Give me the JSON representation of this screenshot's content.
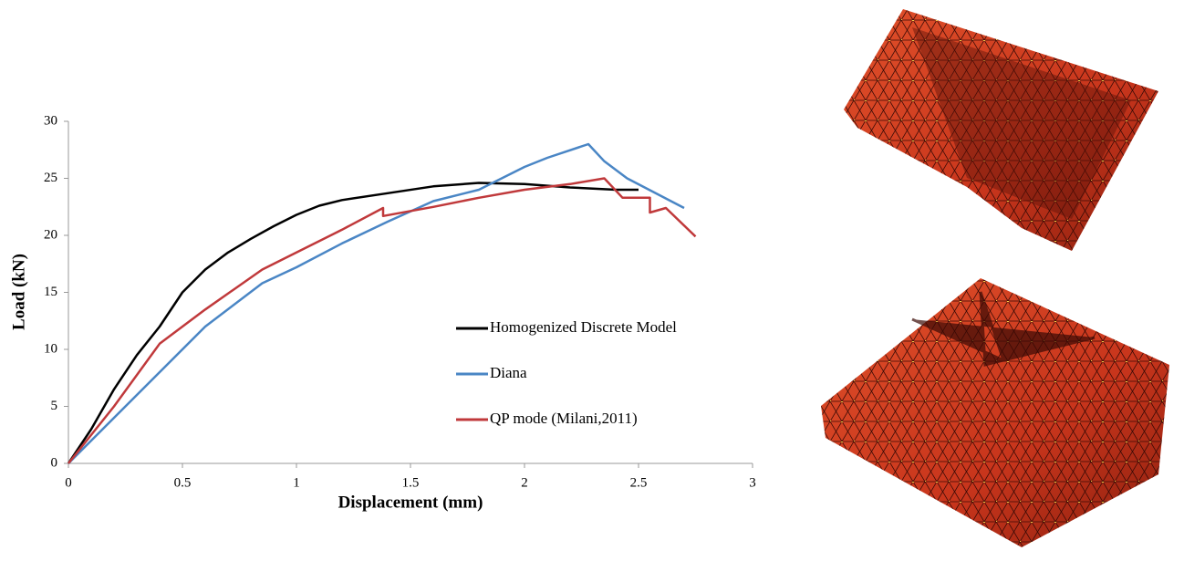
{
  "chart_data": {
    "type": "line",
    "xlabel": "Displacement (mm)",
    "ylabel": "Load (kN)",
    "xlim": [
      0,
      3
    ],
    "ylim": [
      0,
      30
    ],
    "xticks": [
      0,
      0.5,
      1,
      1.5,
      2,
      2.5,
      3
    ],
    "yticks": [
      0,
      5,
      10,
      15,
      20,
      25,
      30
    ],
    "grid": false,
    "series": [
      {
        "name": "Homogenized Discrete Model",
        "color": "#000000",
        "x": [
          0,
          0.1,
          0.2,
          0.3,
          0.4,
          0.5,
          0.6,
          0.7,
          0.8,
          0.9,
          1,
          1.1,
          1.2,
          1.4,
          1.6,
          1.8,
          2,
          2.2,
          2.4,
          2.5
        ],
        "values": [
          0,
          3,
          6.5,
          9.5,
          12,
          15,
          17,
          18.5,
          19.7,
          20.8,
          21.8,
          22.6,
          23.1,
          23.7,
          24.3,
          24.6,
          24.5,
          24.2,
          24,
          24
        ]
      },
      {
        "name": "Diana",
        "color": "#4a86c5",
        "x": [
          0,
          0.2,
          0.4,
          0.6,
          0.85,
          1,
          1.2,
          1.4,
          1.6,
          1.8,
          2,
          2.1,
          2.28,
          2.35,
          2.45,
          2.7
        ],
        "values": [
          0,
          4,
          8,
          12,
          15.8,
          17.2,
          19.3,
          21.2,
          23,
          24,
          26,
          26.8,
          28,
          26.5,
          25,
          22.4
        ]
      },
      {
        "name": "QP mode (Milani,2011)",
        "color": "#c0393b",
        "x": [
          0,
          0.2,
          0.4,
          0.6,
          0.85,
          1,
          1.2,
          1.38,
          1.38,
          1.6,
          1.8,
          2,
          2.2,
          2.35,
          2.43,
          2.55,
          2.55,
          2.62,
          2.75
        ],
        "values": [
          0,
          5,
          10.5,
          13.5,
          17,
          18.5,
          20.5,
          22.4,
          21.7,
          22.5,
          23.3,
          24,
          24.5,
          25,
          23.3,
          23.3,
          22,
          22.4,
          19.9
        ]
      }
    ]
  }
}
